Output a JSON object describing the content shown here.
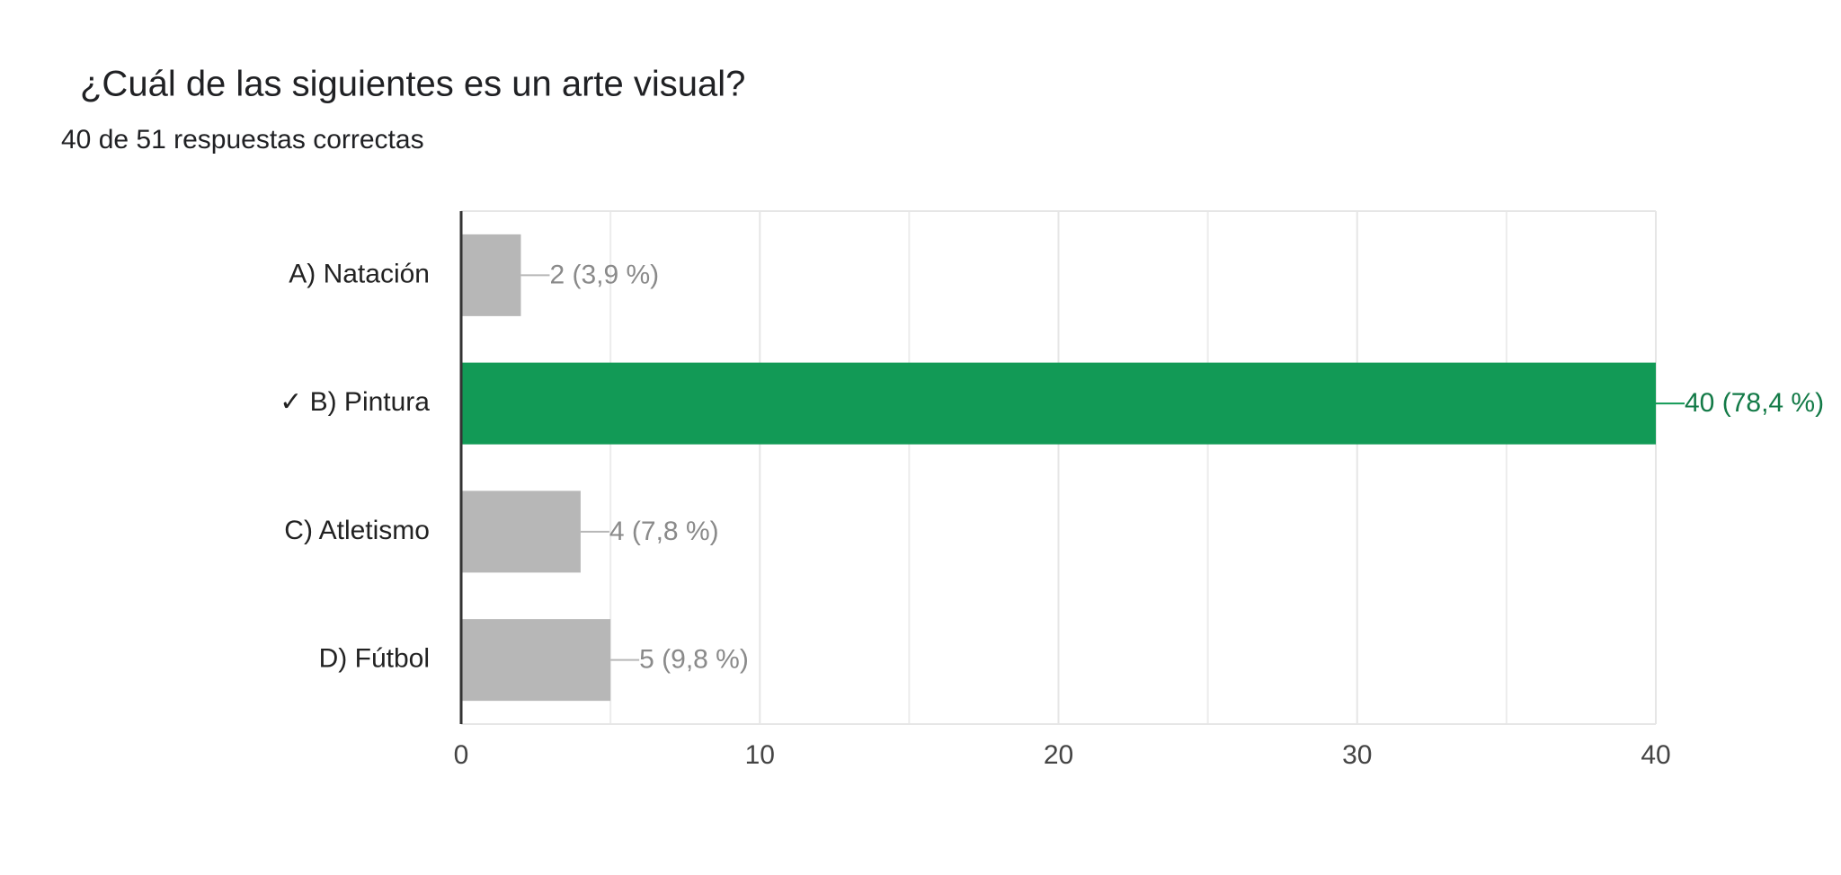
{
  "chart_data": {
    "type": "bar",
    "orientation": "horizontal",
    "title": "¿Cuál de las siguientes es un arte visual?",
    "subtitle": "40 de 51 respuestas correctas",
    "categories": [
      "A) Natación",
      "✓ B) Pintura",
      "C) Atletismo",
      "D) Fútbol"
    ],
    "values": [
      2,
      40,
      4,
      5
    ],
    "value_labels": [
      "2 (3,9 %)",
      "40 (78,4 %)",
      "4 (7,8 %)",
      "5 (9,8 %)"
    ],
    "colors": [
      "#b7b7b7",
      "#129a56",
      "#b7b7b7",
      "#b7b7b7"
    ],
    "label_colors": [
      "#8a8a8a",
      "#137a47",
      "#8a8a8a",
      "#8a8a8a"
    ],
    "xlim": [
      0,
      40
    ],
    "xticks": [
      0,
      10,
      20,
      30,
      40
    ],
    "grid": true
  }
}
